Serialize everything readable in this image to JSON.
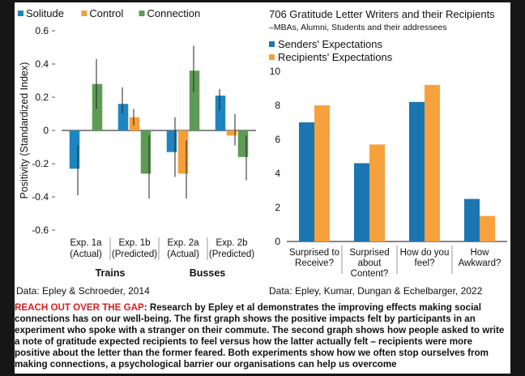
{
  "colors": {
    "solitude": "#1d86c2",
    "control": "#f59e3a",
    "connection": "#5d9b55",
    "senders": "#1b75b0",
    "recipients": "#f7a13c",
    "error_bar": "#222222",
    "caption_lead": "#d42020"
  },
  "chart_data": [
    {
      "type": "bar",
      "ylabel": "Positivity (Standardized Index)",
      "ylim": [
        -0.6,
        0.6
      ],
      "yticks": [
        "0.6",
        "0.4",
        "0.2",
        "0",
        "-0.2",
        "-0.4",
        "-0.6"
      ],
      "ytick_values": [
        0.6,
        0.4,
        0.2,
        0,
        -0.2,
        -0.4,
        -0.6
      ],
      "legend_position": "top-left",
      "categories": [
        {
          "line1": "Exp. 1a",
          "line2": "(Actual)"
        },
        {
          "line1": "Exp. 1b",
          "line2": "(Predicted)"
        },
        {
          "line1": "Exp. 2a",
          "line2": "(Actual)"
        },
        {
          "line1": "Exp. 2b",
          "line2": "(Predicted)"
        }
      ],
      "groups": [
        {
          "label": "Trains",
          "categories": [
            0,
            1
          ]
        },
        {
          "label": "Busses",
          "categories": [
            2,
            3
          ]
        }
      ],
      "series": [
        {
          "name": "Solitude",
          "color_key": "solitude",
          "values": [
            -0.23,
            0.16,
            -0.13,
            0.21
          ],
          "error_low": [
            -0.39,
            0.1,
            -0.28,
            0.12
          ],
          "error_high": [
            -0.09,
            0.26,
            0.08,
            0.25
          ]
        },
        {
          "name": "Control",
          "color_key": "control",
          "values": [
            null,
            0.08,
            -0.26,
            -0.03
          ],
          "error_low": [
            null,
            0.03,
            -0.41,
            -0.09
          ],
          "error_high": [
            null,
            0.13,
            -0.06,
            0.1
          ]
        },
        {
          "name": "Connection",
          "color_key": "connection",
          "values": [
            0.28,
            -0.26,
            0.36,
            -0.16
          ],
          "error_low": [
            0.13,
            -0.41,
            0.23,
            -0.3
          ],
          "error_high": [
            0.43,
            -0.03,
            0.51,
            -0.03
          ]
        }
      ]
    },
    {
      "type": "bar",
      "title": "706 Gratitude Letter Writers and their Recipients",
      "subtitle": "–MBAs, Alumni, Students and their addressees",
      "ylim": [
        0,
        10
      ],
      "yticks": [
        "10",
        "8",
        "6",
        "4",
        "2",
        "0"
      ],
      "ytick_values": [
        10,
        8,
        6,
        4,
        2,
        0
      ],
      "legend_position": "top-left",
      "categories": [
        {
          "lines": [
            "Surprised to",
            "Receive?"
          ]
        },
        {
          "lines": [
            "Surprised",
            "about",
            "Content?"
          ]
        },
        {
          "lines": [
            "How do you",
            "feel?"
          ]
        },
        {
          "lines": [
            "How",
            "Awkward?"
          ]
        }
      ],
      "series": [
        {
          "name": "Senders' Expectations",
          "color_key": "senders",
          "values": [
            7.0,
            4.6,
            8.2,
            2.5
          ]
        },
        {
          "name": "Recipients' Expectations",
          "color_key": "recipients",
          "values": [
            8.0,
            5.7,
            9.2,
            1.5
          ]
        }
      ]
    }
  ],
  "sources": {
    "left": "Data: Epley & Schroeder, 2014",
    "right": "Data: Epley, Kumar, Dungan & Echelbarger, 2022"
  },
  "caption": {
    "lead": "REACH OUT OVER THE GAP",
    "body": ": Research by Epley et al demonstrates the improving effects making social connections has on our well-being. The first graph shows the positive impacts felt by participants in an experiment who spoke with a stranger on their commute. The second graph shows how people asked to write a note of gratitude expected recipients to feel versus how the latter actually felt – recipients were more positive about the letter than the former feared. Both experiments show how we often stop ourselves from making connections, a psychological barrier our organisations can help us overcome"
  }
}
